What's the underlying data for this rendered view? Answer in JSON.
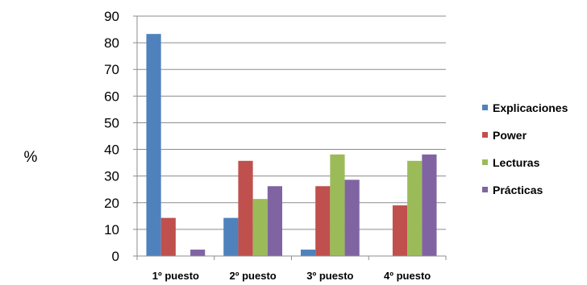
{
  "chart_data": {
    "type": "bar",
    "title": "",
    "xlabel": "",
    "ylabel": "%",
    "ylim": [
      0,
      90
    ],
    "yticks": [
      "0",
      "10",
      "20",
      "30",
      "40",
      "50",
      "60",
      "70",
      "80",
      "90"
    ],
    "categories": [
      "1º puesto",
      "2º puesto",
      "3º puesto",
      "4º puesto"
    ],
    "series": [
      {
        "name": "Explicaciones",
        "color": "#4F81BD",
        "values": [
          83.3,
          14.3,
          2.4,
          0
        ]
      },
      {
        "name": "Power",
        "color": "#C0504D",
        "values": [
          14.3,
          35.7,
          26.2,
          19
        ]
      },
      {
        "name": "Lecturas",
        "color": "#9BBB59",
        "values": [
          0,
          21.4,
          38.1,
          35.7
        ]
      },
      {
        "name": "Prácticas",
        "color": "#8064A2",
        "values": [
          2.4,
          26.2,
          28.6,
          38.1
        ]
      }
    ],
    "grid": true,
    "legend": "right"
  }
}
